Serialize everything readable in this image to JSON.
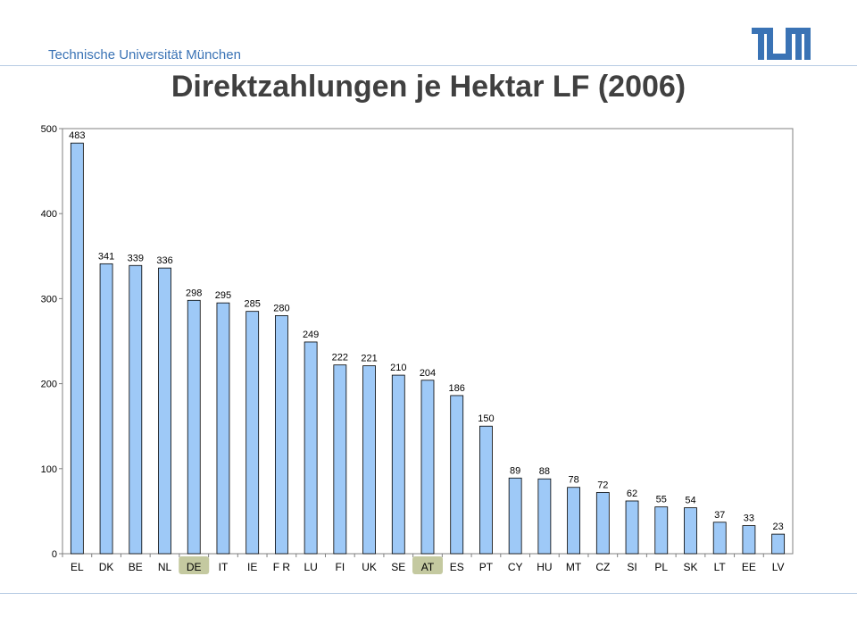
{
  "header": {
    "institution": "Technische Universität München",
    "logo_icon": "tum-logo-icon",
    "brand_color": "#3a73b5"
  },
  "slide": {
    "title": "Direktzahlungen je Hektar LF (2006)"
  },
  "chart_data": {
    "type": "bar",
    "title": "",
    "xlabel": "",
    "ylabel": "",
    "ylim": [
      0,
      500
    ],
    "yticks": [
      0,
      100,
      200,
      300,
      400,
      500
    ],
    "grid": false,
    "bar_color": "#9ec9f7",
    "highlight_color": "#c4c9a0",
    "highlighted_categories": [
      "DE",
      "AT"
    ],
    "categories": [
      "EL",
      "DK",
      "BE",
      "NL",
      "DE",
      "IT",
      "IE",
      "FR",
      "LU",
      "FI",
      "UK",
      "SE",
      "AT",
      "ES",
      "PT",
      "CY",
      "HU",
      "MT",
      "CZ",
      "SI",
      "PL",
      "SK",
      "LT",
      "EE",
      "LV"
    ],
    "values": [
      483,
      341,
      339,
      336,
      298,
      295,
      285,
      280,
      249,
      222,
      221,
      210,
      204,
      186,
      150,
      89,
      88,
      78,
      72,
      62,
      55,
      54,
      37,
      33,
      23
    ],
    "category_labels": [
      "EL",
      "DK",
      "BE",
      "NL",
      "DE",
      "IT",
      "IE",
      "F R",
      "LU",
      "FI",
      "UK",
      "SE",
      "AT",
      "ES",
      "PT",
      "CY",
      "HU",
      "MT",
      "CZ",
      "SI",
      "PL",
      "SK",
      "LT",
      "EE",
      "LV"
    ]
  }
}
